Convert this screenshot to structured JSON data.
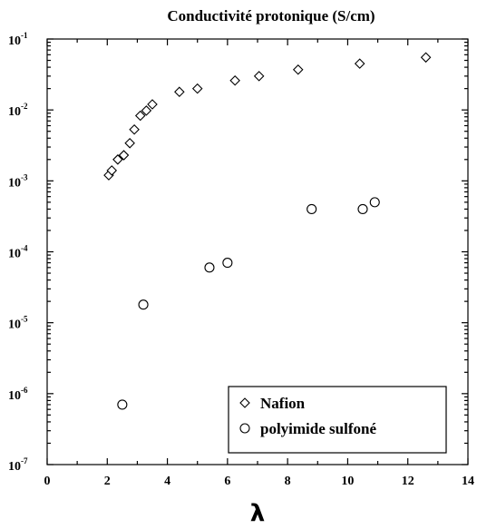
{
  "chart_data": {
    "type": "scatter",
    "title": "Conductivité protonique (S/cm)",
    "xlabel": "λ",
    "ylabel": "",
    "xlim": [
      0,
      14
    ],
    "ylim": [
      1e-07,
      0.1
    ],
    "yscale": "log",
    "x_ticks": [
      "0",
      "2",
      "4",
      "6",
      "8",
      "10",
      "12",
      "14"
    ],
    "y_ticks": [
      {
        "base": "10",
        "exp": "-7"
      },
      {
        "base": "10",
        "exp": "-6"
      },
      {
        "base": "10",
        "exp": "-5"
      },
      {
        "base": "10",
        "exp": "-4"
      },
      {
        "base": "10",
        "exp": "-3"
      },
      {
        "base": "10",
        "exp": "-2"
      },
      {
        "base": "10",
        "exp": "-1"
      }
    ],
    "legend_position": "bottom-right",
    "grid": false,
    "series": [
      {
        "name": "Nafion",
        "marker": "diamond",
        "points": [
          [
            2.05,
            0.0012
          ],
          [
            2.15,
            0.0014
          ],
          [
            2.35,
            0.002
          ],
          [
            2.55,
            0.0023
          ],
          [
            2.75,
            0.0034
          ],
          [
            2.9,
            0.0053
          ],
          [
            3.1,
            0.0083
          ],
          [
            3.3,
            0.0098
          ],
          [
            3.5,
            0.012
          ],
          [
            4.4,
            0.018
          ],
          [
            5.0,
            0.02
          ],
          [
            6.25,
            0.026
          ],
          [
            7.05,
            0.03
          ],
          [
            8.35,
            0.037
          ],
          [
            10.4,
            0.045
          ],
          [
            12.6,
            0.055
          ]
        ]
      },
      {
        "name": "polyimide sulfoné",
        "marker": "circle",
        "points": [
          [
            2.5,
            7e-07
          ],
          [
            3.2,
            1.8e-05
          ],
          [
            5.4,
            6e-05
          ],
          [
            6.0,
            7e-05
          ],
          [
            8.8,
            0.0004
          ],
          [
            10.5,
            0.0004
          ],
          [
            10.9,
            0.0005
          ]
        ]
      }
    ]
  }
}
